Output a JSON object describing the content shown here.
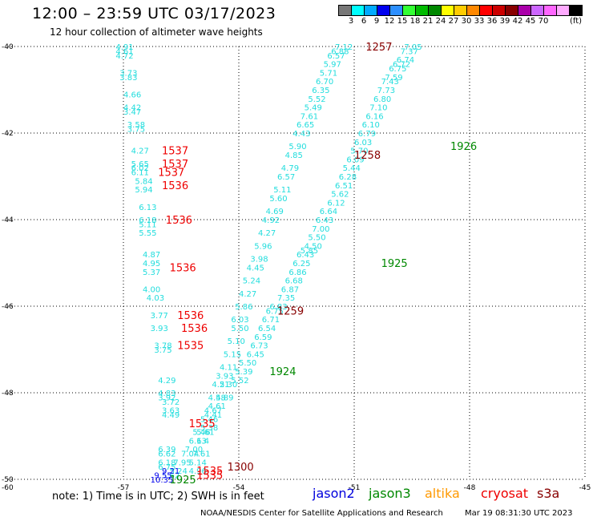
{
  "header": {
    "title": "12:00 – 23:59 UTC 03/17/2023",
    "subtitle": "12 hour collection of altimeter wave heights"
  },
  "colorbar": {
    "unit": "(ft)",
    "colors": [
      "#777777",
      "#00ffff",
      "#00aaff",
      "#0000ee",
      "#2c8fff",
      "#33ff33",
      "#00bb00",
      "#008800",
      "#ffff00",
      "#ffcc00",
      "#ff8800",
      "#ff0000",
      "#cc0000",
      "#880000",
      "#aa00aa",
      "#cc66ff",
      "#ff66ff",
      "#ffaaff",
      "#000000"
    ],
    "ticks": [
      "3",
      "6",
      "9",
      "12",
      "15",
      "18",
      "21",
      "24",
      "27",
      "30",
      "33",
      "36",
      "39",
      "42",
      "45",
      "70"
    ]
  },
  "note": "note: 1) Time is in UTC; 2) SWH is in feet",
  "satellites": [
    {
      "name": "jason2",
      "color": "#0000dd"
    },
    {
      "name": "jason3",
      "color": "#008800"
    },
    {
      "name": "altika",
      "color": "#ff9900"
    },
    {
      "name": "cryosat",
      "color": "#ee0000"
    },
    {
      "name": "s3a",
      "color": "#880000"
    }
  ],
  "credit": "NOAA/NESDIS Center for Satellite Applications and Research",
  "timestamp": "Mar 19 08:31:30 UTC 2023",
  "chart_data": {
    "type": "scatter",
    "xlim": [
      -60,
      -45
    ],
    "ylim": [
      -50,
      -40
    ],
    "x_ticks": [
      "-57",
      "-54",
      "-51",
      "-48",
      "-45"
    ],
    "y_ticks": [
      "-40",
      "-42",
      "-44",
      "-46",
      "-48",
      "-50"
    ],
    "y_bottom_label": "-60",
    "grid": true,
    "points": [
      {
        "x": -57.2,
        "y": -40.0,
        "label": "4.91",
        "color": "#22dddd"
      },
      {
        "x": -57.2,
        "y": -40.1,
        "label": "4.61",
        "color": "#22dddd"
      },
      {
        "x": -57.2,
        "y": -40.2,
        "label": "4.72",
        "color": "#22dddd"
      },
      {
        "x": -57.1,
        "y": -40.6,
        "label": "3.73",
        "color": "#22dddd"
      },
      {
        "x": -57.1,
        "y": -40.7,
        "label": "3.83",
        "color": "#22dddd"
      },
      {
        "x": -57.0,
        "y": -41.1,
        "label": "4.66",
        "color": "#22dddd"
      },
      {
        "x": -57.0,
        "y": -41.4,
        "label": "4.42",
        "color": "#22dddd"
      },
      {
        "x": -57.0,
        "y": -41.5,
        "label": "3.47",
        "color": "#22dddd"
      },
      {
        "x": -56.9,
        "y": -41.8,
        "label": "3.58",
        "color": "#22dddd"
      },
      {
        "x": -56.9,
        "y": -41.9,
        "label": "3.75",
        "color": "#22dddd"
      },
      {
        "x": -56.8,
        "y": -42.4,
        "label": "4.27",
        "color": "#22dddd"
      },
      {
        "x": -56.8,
        "y": -42.7,
        "label": "5.65",
        "color": "#22dddd"
      },
      {
        "x": -56.8,
        "y": -42.8,
        "label": "6.02",
        "color": "#22dddd"
      },
      {
        "x": -56.8,
        "y": -42.9,
        "label": "6.11",
        "color": "#22dddd"
      },
      {
        "x": -56.7,
        "y": -43.1,
        "label": "5.84",
        "color": "#22dddd"
      },
      {
        "x": -56.7,
        "y": -43.3,
        "label": "5.94",
        "color": "#22dddd"
      },
      {
        "x": -56.6,
        "y": -43.7,
        "label": "6.13",
        "color": "#22dddd"
      },
      {
        "x": -56.6,
        "y": -44.0,
        "label": "6.18",
        "color": "#22dddd"
      },
      {
        "x": -56.6,
        "y": -44.1,
        "label": "5.11",
        "color": "#22dddd"
      },
      {
        "x": -56.6,
        "y": -44.3,
        "label": "5.55",
        "color": "#22dddd"
      },
      {
        "x": -56.5,
        "y": -44.8,
        "label": "4.87",
        "color": "#22dddd"
      },
      {
        "x": -56.5,
        "y": -45.0,
        "label": "4.95",
        "color": "#22dddd"
      },
      {
        "x": -56.5,
        "y": -45.2,
        "label": "5.37",
        "color": "#22dddd"
      },
      {
        "x": -56.5,
        "y": -45.6,
        "label": "4.00",
        "color": "#22dddd"
      },
      {
        "x": -56.4,
        "y": -45.8,
        "label": "4.03",
        "color": "#22dddd"
      },
      {
        "x": -56.3,
        "y": -46.2,
        "label": "3.77",
        "color": "#22dddd"
      },
      {
        "x": -56.3,
        "y": -46.5,
        "label": "3.93",
        "color": "#22dddd"
      },
      {
        "x": -56.2,
        "y": -46.9,
        "label": "3.78",
        "color": "#22dddd"
      },
      {
        "x": -56.2,
        "y": -47.0,
        "label": "3.75",
        "color": "#22dddd"
      },
      {
        "x": -56.1,
        "y": -47.7,
        "label": "4.29",
        "color": "#22dddd"
      },
      {
        "x": -56.1,
        "y": -48.0,
        "label": "4.83",
        "color": "#22dddd"
      },
      {
        "x": -56.1,
        "y": -48.1,
        "label": "3.92",
        "color": "#22dddd"
      },
      {
        "x": -56.0,
        "y": -48.2,
        "label": "3.72",
        "color": "#22dddd"
      },
      {
        "x": -56.0,
        "y": -48.4,
        "label": "3.63",
        "color": "#22dddd"
      },
      {
        "x": -56.0,
        "y": -48.5,
        "label": "4.49",
        "color": "#22dddd"
      },
      {
        "x": -56.1,
        "y": -49.3,
        "label": "6.39",
        "color": "#22dddd"
      },
      {
        "x": -56.1,
        "y": -49.4,
        "label": "6.62",
        "color": "#22dddd"
      },
      {
        "x": -56.1,
        "y": -49.6,
        "label": "6.18",
        "color": "#22dddd"
      },
      {
        "x": -56.1,
        "y": -49.7,
        "label": "6.75",
        "color": "#22dddd"
      },
      {
        "x": -56.0,
        "y": -49.9,
        "label": "5.62",
        "color": "#22dddd"
      },
      {
        "x": -55.8,
        "y": -49.8,
        "label": "5.24",
        "color": "#22dddd"
      },
      {
        "x": -55.7,
        "y": -49.6,
        "label": "7.95",
        "color": "#22dddd"
      },
      {
        "x": -55.5,
        "y": -49.4,
        "label": "7.04",
        "color": "#22dddd"
      },
      {
        "x": -55.3,
        "y": -49.6,
        "label": "5.14",
        "color": "#22dddd"
      },
      {
        "x": -55.3,
        "y": -49.8,
        "label": "4.96",
        "color": "#22dddd"
      },
      {
        "x": -55.2,
        "y": -49.4,
        "label": "7.61",
        "color": "#22dddd"
      },
      {
        "x": -55.4,
        "y": -49.3,
        "label": "7.00",
        "color": "#22dddd"
      },
      {
        "x": -55.3,
        "y": -49.1,
        "label": "6.13",
        "color": "#22dddd"
      },
      {
        "x": -55.1,
        "y": -49.1,
        "label": "6.4",
        "color": "#22dddd"
      },
      {
        "x": -55.1,
        "y": -48.9,
        "label": "5.61",
        "color": "#22dddd"
      },
      {
        "x": -55.2,
        "y": -48.9,
        "label": "5.46",
        "color": "#22dddd"
      },
      {
        "x": -55.0,
        "y": -48.8,
        "label": "5.38",
        "color": "#22dddd"
      },
      {
        "x": -55.0,
        "y": -48.6,
        "label": "5.46",
        "color": "#22dddd"
      },
      {
        "x": -54.9,
        "y": -48.5,
        "label": "4.41",
        "color": "#22dddd"
      },
      {
        "x": -54.9,
        "y": -48.4,
        "label": "4.67",
        "color": "#22dddd"
      },
      {
        "x": -54.8,
        "y": -48.3,
        "label": "4.61",
        "color": "#22dddd"
      },
      {
        "x": -54.8,
        "y": -48.1,
        "label": "4.58",
        "color": "#22dddd"
      },
      {
        "x": -54.6,
        "y": -48.1,
        "label": "4.89",
        "color": "#22dddd"
      },
      {
        "x": -54.7,
        "y": -47.8,
        "label": "4.21",
        "color": "#22dddd"
      },
      {
        "x": -54.5,
        "y": -47.8,
        "label": "5.30",
        "color": "#22dddd"
      },
      {
        "x": -54.6,
        "y": -47.6,
        "label": "3.93",
        "color": "#22dddd"
      },
      {
        "x": -54.2,
        "y": -47.7,
        "label": "5.52",
        "color": "#22dddd"
      },
      {
        "x": -54.5,
        "y": -47.4,
        "label": "4.11",
        "color": "#22dddd"
      },
      {
        "x": -54.1,
        "y": -47.5,
        "label": "5.39",
        "color": "#22dddd"
      },
      {
        "x": -54.4,
        "y": -47.1,
        "label": "5.15",
        "color": "#22dddd"
      },
      {
        "x": -54.0,
        "y": -47.3,
        "label": "5.50",
        "color": "#22dddd"
      },
      {
        "x": -54.3,
        "y": -46.8,
        "label": "5.10",
        "color": "#22dddd"
      },
      {
        "x": -53.8,
        "y": -47.1,
        "label": "6.45",
        "color": "#22dddd"
      },
      {
        "x": -54.2,
        "y": -46.5,
        "label": "5.50",
        "color": "#22dddd"
      },
      {
        "x": -53.7,
        "y": -46.9,
        "label": "6.73",
        "color": "#22dddd"
      },
      {
        "x": -54.2,
        "y": -46.3,
        "label": "6.03",
        "color": "#22dddd"
      },
      {
        "x": -53.6,
        "y": -46.7,
        "label": "6.59",
        "color": "#22dddd"
      },
      {
        "x": -54.1,
        "y": -46.0,
        "label": "5.86",
        "color": "#22dddd"
      },
      {
        "x": -53.5,
        "y": -46.5,
        "label": "6.54",
        "color": "#22dddd"
      },
      {
        "x": -53.4,
        "y": -46.3,
        "label": "6.71",
        "color": "#22dddd"
      },
      {
        "x": -53.3,
        "y": -46.1,
        "label": "6.75",
        "color": "#22dddd"
      },
      {
        "x": -54.0,
        "y": -45.7,
        "label": "4.27",
        "color": "#22dddd"
      },
      {
        "x": -53.2,
        "y": -46.0,
        "label": "6.83",
        "color": "#22dddd"
      },
      {
        "x": -53.9,
        "y": -45.4,
        "label": "5.24",
        "color": "#22dddd"
      },
      {
        "x": -53.0,
        "y": -45.8,
        "label": "7.35",
        "color": "#22dddd"
      },
      {
        "x": -53.8,
        "y": -45.1,
        "label": "4.45",
        "color": "#22dddd"
      },
      {
        "x": -52.9,
        "y": -45.6,
        "label": "6.87",
        "color": "#22dddd"
      },
      {
        "x": -53.7,
        "y": -44.9,
        "label": "3.98",
        "color": "#22dddd"
      },
      {
        "x": -52.8,
        "y": -45.4,
        "label": "6.68",
        "color": "#22dddd"
      },
      {
        "x": -53.6,
        "y": -44.6,
        "label": "5.96",
        "color": "#22dddd"
      },
      {
        "x": -52.7,
        "y": -45.2,
        "label": "6.86",
        "color": "#22dddd"
      },
      {
        "x": -53.5,
        "y": -44.3,
        "label": "4.27",
        "color": "#22dddd"
      },
      {
        "x": -52.6,
        "y": -45.0,
        "label": "6.25",
        "color": "#22dddd"
      },
      {
        "x": -53.4,
        "y": -44.0,
        "label": "4.92",
        "color": "#22dddd"
      },
      {
        "x": -52.5,
        "y": -44.8,
        "label": "6.43",
        "color": "#22dddd"
      },
      {
        "x": -53.3,
        "y": -43.8,
        "label": "4.69",
        "color": "#22dddd"
      },
      {
        "x": -52.4,
        "y": -44.7,
        "label": "5.85",
        "color": "#22dddd"
      },
      {
        "x": -53.2,
        "y": -43.5,
        "label": "5.60",
        "color": "#22dddd"
      },
      {
        "x": -52.3,
        "y": -44.6,
        "label": "4.50",
        "color": "#22dddd"
      },
      {
        "x": -53.1,
        "y": -43.3,
        "label": "5.11",
        "color": "#22dddd"
      },
      {
        "x": -52.2,
        "y": -44.4,
        "label": "5.50",
        "color": "#22dddd"
      },
      {
        "x": -53.0,
        "y": -43.0,
        "label": "6.57",
        "color": "#22dddd"
      },
      {
        "x": -52.1,
        "y": -44.2,
        "label": "7.00",
        "color": "#22dddd"
      },
      {
        "x": -52.9,
        "y": -42.8,
        "label": "4.79",
        "color": "#22dddd"
      },
      {
        "x": -52.0,
        "y": -44.0,
        "label": "6.43",
        "color": "#22dddd"
      },
      {
        "x": -52.8,
        "y": -42.5,
        "label": "4.85",
        "color": "#22dddd"
      },
      {
        "x": -51.9,
        "y": -43.8,
        "label": "6.64",
        "color": "#22dddd"
      },
      {
        "x": -52.7,
        "y": -42.3,
        "label": "5.90",
        "color": "#22dddd"
      },
      {
        "x": -51.7,
        "y": -43.6,
        "label": "6.12",
        "color": "#22dddd"
      },
      {
        "x": -52.6,
        "y": -42.0,
        "label": "4.43",
        "color": "#22dddd"
      },
      {
        "x": -51.6,
        "y": -43.4,
        "label": "5.62",
        "color": "#22dddd"
      },
      {
        "x": -52.5,
        "y": -41.8,
        "label": "6.65",
        "color": "#22dddd"
      },
      {
        "x": -51.5,
        "y": -43.2,
        "label": "6.51",
        "color": "#22dddd"
      },
      {
        "x": -52.4,
        "y": -41.6,
        "label": "7.61",
        "color": "#22dddd"
      },
      {
        "x": -51.4,
        "y": -43.0,
        "label": "6.28",
        "color": "#22dddd"
      },
      {
        "x": -52.3,
        "y": -41.4,
        "label": "5.49",
        "color": "#22dddd"
      },
      {
        "x": -51.3,
        "y": -42.8,
        "label": "5.44",
        "color": "#22dddd"
      },
      {
        "x": -52.2,
        "y": -41.2,
        "label": "5.52",
        "color": "#22dddd"
      },
      {
        "x": -51.2,
        "y": -42.6,
        "label": "6.09",
        "color": "#22dddd"
      },
      {
        "x": -52.1,
        "y": -41.0,
        "label": "6.35",
        "color": "#22dddd"
      },
      {
        "x": -51.1,
        "y": -42.4,
        "label": "5.70",
        "color": "#22dddd"
      },
      {
        "x": -52.0,
        "y": -40.8,
        "label": "6.70",
        "color": "#22dddd"
      },
      {
        "x": -51.0,
        "y": -42.2,
        "label": "6.03",
        "color": "#22dddd"
      },
      {
        "x": -51.9,
        "y": -40.6,
        "label": "5.71",
        "color": "#22dddd"
      },
      {
        "x": -50.9,
        "y": -42.0,
        "label": "6.79",
        "color": "#22dddd"
      },
      {
        "x": -51.8,
        "y": -40.4,
        "label": "5.97",
        "color": "#22dddd"
      },
      {
        "x": -50.8,
        "y": -41.8,
        "label": "6.10",
        "color": "#22dddd"
      },
      {
        "x": -51.7,
        "y": -40.2,
        "label": "6.57",
        "color": "#22dddd"
      },
      {
        "x": -50.7,
        "y": -41.6,
        "label": "6.16",
        "color": "#22dddd"
      },
      {
        "x": -51.6,
        "y": -40.1,
        "label": "6.88",
        "color": "#22dddd"
      },
      {
        "x": -50.6,
        "y": -41.4,
        "label": "7.10",
        "color": "#22dddd"
      },
      {
        "x": -51.5,
        "y": -40.0,
        "label": "7.12",
        "color": "#22dddd"
      },
      {
        "x": -50.5,
        "y": -41.2,
        "label": "6.80",
        "color": "#22dddd"
      },
      {
        "x": -50.4,
        "y": -41.0,
        "label": "7.73",
        "color": "#22dddd"
      },
      {
        "x": -50.3,
        "y": -40.8,
        "label": "7.43",
        "color": "#22dddd"
      },
      {
        "x": -50.2,
        "y": -40.7,
        "label": "7.59",
        "color": "#22dddd"
      },
      {
        "x": -50.1,
        "y": -40.5,
        "label": "6.75",
        "color": "#22dddd"
      },
      {
        "x": -50.0,
        "y": -40.4,
        "label": "6.72",
        "color": "#22dddd"
      },
      {
        "x": -49.9,
        "y": -40.3,
        "label": "6.74",
        "color": "#22dddd"
      },
      {
        "x": -49.8,
        "y": -40.1,
        "label": "7.37",
        "color": "#22dddd"
      },
      {
        "x": -49.7,
        "y": -40.0,
        "label": "7.05",
        "color": "#22dddd"
      },
      {
        "x": -56.0,
        "y": -49.8,
        "label": "9.21",
        "color": "#0000ee"
      },
      {
        "x": -56.2,
        "y": -49.9,
        "label": "9.55",
        "color": "#0000ee"
      },
      {
        "x": -56.3,
        "y": -50.0,
        "label": "10.35",
        "color": "#0000ee"
      }
    ],
    "annotations": [
      {
        "x": -50.7,
        "y": -40.0,
        "label": "1257",
        "color": "#880000"
      },
      {
        "x": -51.0,
        "y": -42.5,
        "label": "1258",
        "color": "#880000"
      },
      {
        "x": -53.0,
        "y": -46.1,
        "label": "1259",
        "color": "#880000"
      },
      {
        "x": -54.3,
        "y": -49.7,
        "label": "1300",
        "color": "#880000"
      },
      {
        "x": -48.5,
        "y": -42.3,
        "label": "1926",
        "color": "#008800"
      },
      {
        "x": -50.3,
        "y": -45.0,
        "label": "1925",
        "color": "#008800"
      },
      {
        "x": -53.2,
        "y": -47.5,
        "label": "1924",
        "color": "#008800"
      },
      {
        "x": -55.8,
        "y": -50.0,
        "label": "1925",
        "color": "#008800"
      },
      {
        "x": -56.0,
        "y": -42.4,
        "label": "1537",
        "color": "#ee0000"
      },
      {
        "x": -56.0,
        "y": -42.7,
        "label": "1537",
        "color": "#ee0000"
      },
      {
        "x": -56.1,
        "y": -42.9,
        "label": "1537",
        "color": "#ee0000"
      },
      {
        "x": -56.0,
        "y": -43.2,
        "label": "1536",
        "color": "#ee0000"
      },
      {
        "x": -55.9,
        "y": -44.0,
        "label": "1536",
        "color": "#ee0000"
      },
      {
        "x": -55.8,
        "y": -45.1,
        "label": "1536",
        "color": "#ee0000"
      },
      {
        "x": -55.6,
        "y": -46.2,
        "label": "1536",
        "color": "#ee0000"
      },
      {
        "x": -55.5,
        "y": -46.5,
        "label": "1536",
        "color": "#ee0000"
      },
      {
        "x": -55.6,
        "y": -46.9,
        "label": "1535",
        "color": "#ee0000"
      },
      {
        "x": -55.3,
        "y": -48.7,
        "label": "1535",
        "color": "#ee0000"
      },
      {
        "x": -55.1,
        "y": -49.8,
        "label": "1535",
        "color": "#ee0000"
      },
      {
        "x": -55.1,
        "y": -49.9,
        "label": "1535",
        "color": "#ee0000"
      }
    ]
  }
}
